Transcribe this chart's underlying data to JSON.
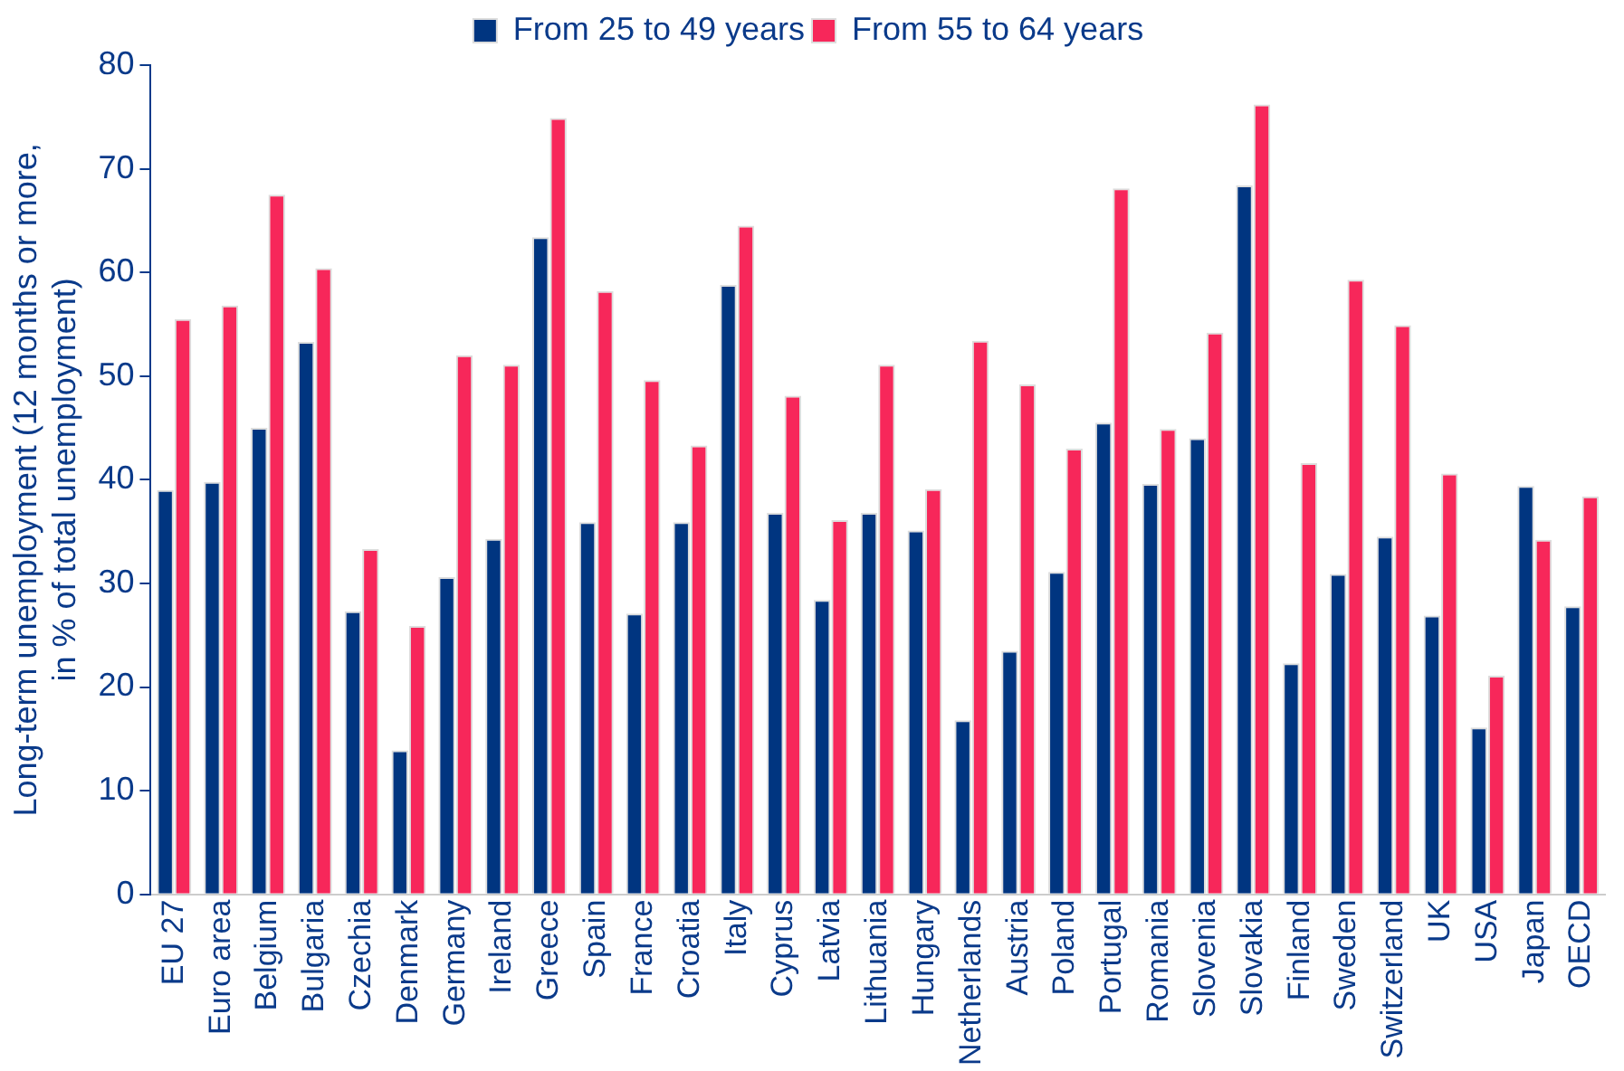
{
  "chart_data": {
    "type": "bar",
    "ylabel": "Long-term unemployment (12 months or more,\nin % of total unemployment)",
    "categories": [
      "EU 27",
      "Euro area",
      "Belgium",
      "Bulgaria",
      "Czechia",
      "Denmark",
      "Germany",
      "Ireland",
      "Greece",
      "Spain",
      "France",
      "Croatia",
      "Italy",
      "Cyprus",
      "Latvia",
      "Lithuania",
      "Hungary",
      "Netherlands",
      "Austria",
      "Poland",
      "Portugal",
      "Romania",
      "Slovenia",
      "Slovakia",
      "Finland",
      "Sweden",
      "Switzerland",
      "UK",
      "USA",
      "Japan",
      "OECD"
    ],
    "series": [
      {
        "name": "From 25 to 49 years",
        "color": "#003580",
        "values": [
          39,
          39.8,
          45,
          53.3,
          27.3,
          13.9,
          30.6,
          34.3,
          63.4,
          35.9,
          27.1,
          35.9,
          58.8,
          36.8,
          28.4,
          36.8,
          35.1,
          16.8,
          23.5,
          31.1,
          45.5,
          39.6,
          44,
          68.4,
          22.3,
          30.9,
          34.5,
          26.9,
          16.1,
          39.4,
          27.8
        ]
      },
      {
        "name": "From 55 to 64 years",
        "color": "#f7275a",
        "values": [
          55.5,
          56.8,
          67.5,
          60.4,
          33.3,
          25.9,
          52,
          51.1,
          74.9,
          58.2,
          49.6,
          43.3,
          64.5,
          48.1,
          36.1,
          51.1,
          39.1,
          53.4,
          49.2,
          43,
          68.1,
          44.9,
          54.2,
          76.2,
          41.6,
          59.3,
          54.9,
          40.6,
          21.1,
          34.2,
          38.4
        ]
      }
    ],
    "ylim": [
      0,
      80
    ],
    "yticks": [
      0,
      10,
      20,
      30,
      40,
      50,
      60,
      70,
      80
    ],
    "grid": false,
    "legend": "top"
  }
}
